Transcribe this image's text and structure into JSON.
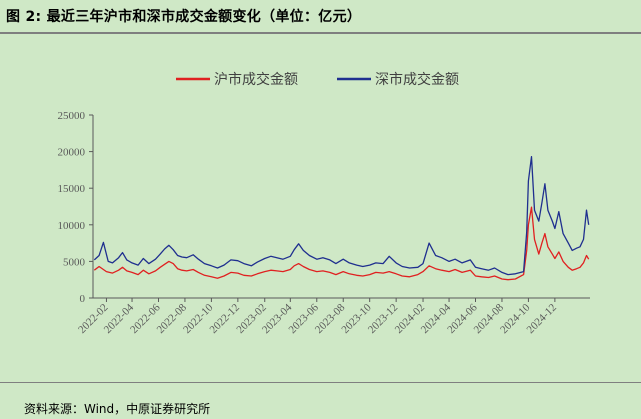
{
  "figure": {
    "title": "图 2:  最近三年沪市和深市成交金额变化（单位：亿元）",
    "source": "资料来源：Wind，中原证券研究所"
  },
  "colors": {
    "background": "#cfe8c6",
    "sh": "#e02020",
    "sz": "#1f2f8f",
    "axis": "#595959"
  },
  "chart_data": {
    "type": "line",
    "title": "",
    "xlabel": "",
    "ylabel": "",
    "ylim": [
      0,
      25000
    ],
    "yticks": [
      0,
      5000,
      10000,
      15000,
      20000,
      25000
    ],
    "xticks": [
      "2022-02",
      "2022-04",
      "2022-06",
      "2022-08",
      "2022-10",
      "2022-12",
      "2023-02",
      "2023-04",
      "2023-06",
      "2023-08",
      "2023-10",
      "2023-12",
      "2024-02",
      "2024-04",
      "2024-06",
      "2024-08",
      "2024-10",
      "2024-12"
    ],
    "xrange": [
      "2022-01",
      "2025-02"
    ],
    "legend_position": "top-center",
    "grid": false,
    "series": [
      {
        "name": "沪市成交金额",
        "color": "#e02020",
        "points": [
          [
            "2022-01-04",
            3800
          ],
          [
            "2022-01-15",
            4300
          ],
          [
            "2022-02-01",
            3600
          ],
          [
            "2022-02-15",
            3400
          ],
          [
            "2022-03-01",
            3800
          ],
          [
            "2022-03-10",
            4200
          ],
          [
            "2022-03-20",
            3700
          ],
          [
            "2022-04-01",
            3500
          ],
          [
            "2022-04-15",
            3200
          ],
          [
            "2022-04-27",
            3800
          ],
          [
            "2022-05-10",
            3300
          ],
          [
            "2022-05-25",
            3700
          ],
          [
            "2022-06-05",
            4200
          ],
          [
            "2022-06-15",
            4600
          ],
          [
            "2022-06-25",
            5000
          ],
          [
            "2022-07-05",
            4700
          ],
          [
            "2022-07-15",
            4000
          ],
          [
            "2022-07-25",
            3800
          ],
          [
            "2022-08-05",
            3700
          ],
          [
            "2022-08-20",
            3900
          ],
          [
            "2022-09-01",
            3500
          ],
          [
            "2022-09-15",
            3100
          ],
          [
            "2022-10-01",
            2900
          ],
          [
            "2022-10-15",
            2700
          ],
          [
            "2022-10-30",
            3000
          ],
          [
            "2022-11-15",
            3500
          ],
          [
            "2022-12-01",
            3400
          ],
          [
            "2022-12-15",
            3100
          ],
          [
            "2023-01-01",
            3000
          ],
          [
            "2023-01-15",
            3300
          ],
          [
            "2023-02-01",
            3600
          ],
          [
            "2023-02-15",
            3800
          ],
          [
            "2023-03-01",
            3700
          ],
          [
            "2023-03-15",
            3600
          ],
          [
            "2023-04-01",
            3900
          ],
          [
            "2023-04-10",
            4400
          ],
          [
            "2023-04-20",
            4700
          ],
          [
            "2023-05-01",
            4300
          ],
          [
            "2023-05-15",
            3900
          ],
          [
            "2023-06-01",
            3600
          ],
          [
            "2023-06-15",
            3700
          ],
          [
            "2023-07-01",
            3500
          ],
          [
            "2023-07-15",
            3200
          ],
          [
            "2023-08-01",
            3600
          ],
          [
            "2023-08-15",
            3300
          ],
          [
            "2023-09-01",
            3100
          ],
          [
            "2023-09-15",
            3000
          ],
          [
            "2023-10-01",
            3200
          ],
          [
            "2023-10-15",
            3500
          ],
          [
            "2023-11-01",
            3400
          ],
          [
            "2023-11-15",
            3600
          ],
          [
            "2023-12-01",
            3300
          ],
          [
            "2023-12-15",
            3000
          ],
          [
            "2024-01-01",
            2900
          ],
          [
            "2024-01-20",
            3200
          ],
          [
            "2024-02-01",
            3600
          ],
          [
            "2024-02-15",
            4400
          ],
          [
            "2024-03-01",
            4000
          ],
          [
            "2024-03-15",
            3800
          ],
          [
            "2024-04-01",
            3600
          ],
          [
            "2024-04-15",
            3900
          ],
          [
            "2024-05-01",
            3500
          ],
          [
            "2024-05-20",
            3800
          ],
          [
            "2024-06-01",
            3000
          ],
          [
            "2024-06-15",
            2900
          ],
          [
            "2024-07-01",
            2800
          ],
          [
            "2024-07-15",
            3000
          ],
          [
            "2024-08-01",
            2600
          ],
          [
            "2024-08-15",
            2500
          ],
          [
            "2024-09-01",
            2600
          ],
          [
            "2024-09-20",
            3200
          ],
          [
            "2024-09-27",
            6500
          ],
          [
            "2024-10-01",
            10000
          ],
          [
            "2024-10-08",
            12400
          ],
          [
            "2024-10-15",
            8000
          ],
          [
            "2024-10-25",
            6000
          ],
          [
            "2024-11-01",
            7500
          ],
          [
            "2024-11-08",
            8800
          ],
          [
            "2024-11-15",
            7000
          ],
          [
            "2024-11-25",
            6000
          ],
          [
            "2024-12-01",
            5400
          ],
          [
            "2024-12-10",
            6300
          ],
          [
            "2024-12-20",
            5000
          ],
          [
            "2025-01-01",
            4200
          ],
          [
            "2025-01-10",
            3800
          ],
          [
            "2025-01-20",
            4000
          ],
          [
            "2025-01-28",
            4200
          ],
          [
            "2025-02-05",
            4800
          ],
          [
            "2025-02-12",
            5800
          ],
          [
            "2025-02-17",
            5300
          ]
        ]
      },
      {
        "name": "深市成交金额",
        "color": "#1f2f8f",
        "points": [
          [
            "2022-01-04",
            5200
          ],
          [
            "2022-01-15",
            5800
          ],
          [
            "2022-01-25",
            7600
          ],
          [
            "2022-02-05",
            5000
          ],
          [
            "2022-02-15",
            4800
          ],
          [
            "2022-03-01",
            5500
          ],
          [
            "2022-03-10",
            6200
          ],
          [
            "2022-03-20",
            5200
          ],
          [
            "2022-04-01",
            4800
          ],
          [
            "2022-04-15",
            4500
          ],
          [
            "2022-04-27",
            5400
          ],
          [
            "2022-05-10",
            4700
          ],
          [
            "2022-05-25",
            5300
          ],
          [
            "2022-06-05",
            6000
          ],
          [
            "2022-06-15",
            6700
          ],
          [
            "2022-06-25",
            7200
          ],
          [
            "2022-07-05",
            6600
          ],
          [
            "2022-07-15",
            5800
          ],
          [
            "2022-07-25",
            5600
          ],
          [
            "2022-08-05",
            5500
          ],
          [
            "2022-08-20",
            5900
          ],
          [
            "2022-09-01",
            5300
          ],
          [
            "2022-09-15",
            4700
          ],
          [
            "2022-10-01",
            4400
          ],
          [
            "2022-10-15",
            4100
          ],
          [
            "2022-10-30",
            4500
          ],
          [
            "2022-11-15",
            5200
          ],
          [
            "2022-12-01",
            5100
          ],
          [
            "2022-12-15",
            4700
          ],
          [
            "2023-01-01",
            4400
          ],
          [
            "2023-01-15",
            4900
          ],
          [
            "2023-02-01",
            5400
          ],
          [
            "2023-02-15",
            5700
          ],
          [
            "2023-03-01",
            5500
          ],
          [
            "2023-03-15",
            5300
          ],
          [
            "2023-04-01",
            5700
          ],
          [
            "2023-04-10",
            6600
          ],
          [
            "2023-04-20",
            7400
          ],
          [
            "2023-05-01",
            6500
          ],
          [
            "2023-05-15",
            5800
          ],
          [
            "2023-06-01",
            5300
          ],
          [
            "2023-06-15",
            5500
          ],
          [
            "2023-07-01",
            5200
          ],
          [
            "2023-07-15",
            4700
          ],
          [
            "2023-08-01",
            5300
          ],
          [
            "2023-08-15",
            4800
          ],
          [
            "2023-09-01",
            4500
          ],
          [
            "2023-09-15",
            4300
          ],
          [
            "2023-10-01",
            4500
          ],
          [
            "2023-10-15",
            4800
          ],
          [
            "2023-11-01",
            4700
          ],
          [
            "2023-11-15",
            5700
          ],
          [
            "2023-12-01",
            4800
          ],
          [
            "2023-12-15",
            4300
          ],
          [
            "2024-01-01",
            4100
          ],
          [
            "2024-01-20",
            4200
          ],
          [
            "2024-02-01",
            4700
          ],
          [
            "2024-02-15",
            7500
          ],
          [
            "2024-03-01",
            5800
          ],
          [
            "2024-03-15",
            5500
          ],
          [
            "2024-04-01",
            5000
          ],
          [
            "2024-04-15",
            5300
          ],
          [
            "2024-05-01",
            4800
          ],
          [
            "2024-05-20",
            5200
          ],
          [
            "2024-06-01",
            4200
          ],
          [
            "2024-06-15",
            4000
          ],
          [
            "2024-07-01",
            3800
          ],
          [
            "2024-07-15",
            4100
          ],
          [
            "2024-08-01",
            3500
          ],
          [
            "2024-08-15",
            3200
          ],
          [
            "2024-09-01",
            3300
          ],
          [
            "2024-09-20",
            3600
          ],
          [
            "2024-09-27",
            9000
          ],
          [
            "2024-10-01",
            16000
          ],
          [
            "2024-10-08",
            19300
          ],
          [
            "2024-10-15",
            12000
          ],
          [
            "2024-10-25",
            10500
          ],
          [
            "2024-11-01",
            13000
          ],
          [
            "2024-11-08",
            15600
          ],
          [
            "2024-11-15",
            12000
          ],
          [
            "2024-11-25",
            10500
          ],
          [
            "2024-12-01",
            9500
          ],
          [
            "2024-12-10",
            11800
          ],
          [
            "2024-12-20",
            8800
          ],
          [
            "2025-01-01",
            7500
          ],
          [
            "2025-01-10",
            6500
          ],
          [
            "2025-01-20",
            6800
          ],
          [
            "2025-01-28",
            7000
          ],
          [
            "2025-02-05",
            8000
          ],
          [
            "2025-02-12",
            12000
          ],
          [
            "2025-02-17",
            10000
          ]
        ]
      }
    ]
  }
}
